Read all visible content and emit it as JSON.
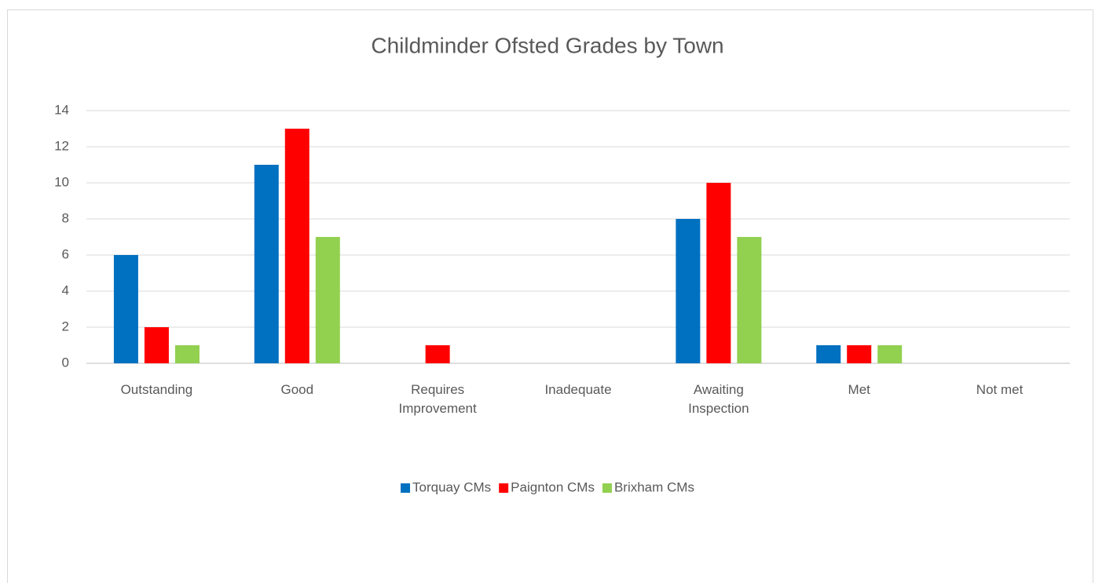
{
  "chart_data": {
    "type": "bar",
    "title": "Childminder Ofsted Grades by Town",
    "categories": [
      "Outstanding",
      "Good",
      "Requires Improvement",
      "Inadequate",
      "Awaiting Inspection",
      "Met",
      "Not met"
    ],
    "series": [
      {
        "name": "Torquay CMs",
        "color": "#0070c0",
        "values": [
          6,
          11,
          0,
          0,
          8,
          1,
          0
        ]
      },
      {
        "name": "Paignton CMs",
        "color": "#ff0000",
        "values": [
          2,
          13,
          1,
          0,
          10,
          1,
          0
        ]
      },
      {
        "name": "Brixham CMs",
        "color": "#92d050",
        "values": [
          1,
          7,
          0,
          0,
          7,
          1,
          0
        ]
      }
    ],
    "ylim": [
      0,
      14
    ],
    "yticks": [
      0,
      2,
      4,
      6,
      8,
      10,
      12,
      14
    ],
    "grid": true,
    "legend": "bottom"
  }
}
